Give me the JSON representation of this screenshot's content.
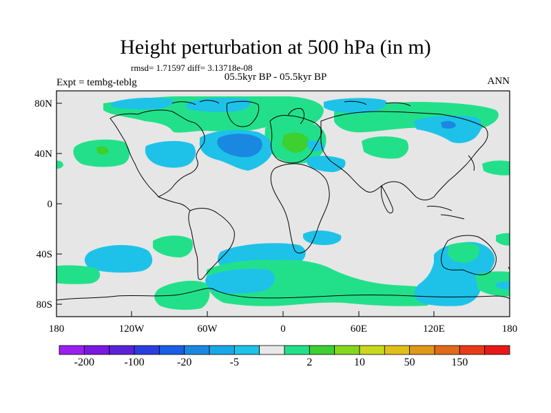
{
  "title": "Height perturbation at 500 hPa (in m)",
  "stats_text": "rmsd= 1.71597 diff= 3.13718e-08",
  "experiment_text": "Expt = tembg-teblg",
  "period_text": "05.5kyr BP - 05.5kyr BP",
  "season_text": "ANN",
  "lat_labels": [
    "80N",
    "40N",
    "0",
    "40S",
    "80S"
  ],
  "lon_labels": [
    "180",
    "120W",
    "60W",
    "0",
    "60E",
    "120E",
    "180"
  ],
  "colorbar": {
    "colors": [
      "#9a1ff0",
      "#7a18e0",
      "#5a22d8",
      "#2a3ee0",
      "#1a5ee8",
      "#1a88e0",
      "#18a8e8",
      "#1ec2e8",
      "#e8e8e8",
      "#22e08a",
      "#3cd030",
      "#84d81c",
      "#c8d81c",
      "#e0c018",
      "#e09818",
      "#e06a18",
      "#e83a18",
      "#e81818"
    ],
    "labels": [
      "-200",
      "-100",
      "-20",
      "-5",
      "2",
      "10",
      "50",
      "150"
    ]
  },
  "map_colors": {
    "background": "#e6e6e6",
    "cyan": "#1ec2e8",
    "blue": "#1a88e0",
    "green": "#22e08a",
    "lime": "#3cd030",
    "coast": "#000000"
  }
}
